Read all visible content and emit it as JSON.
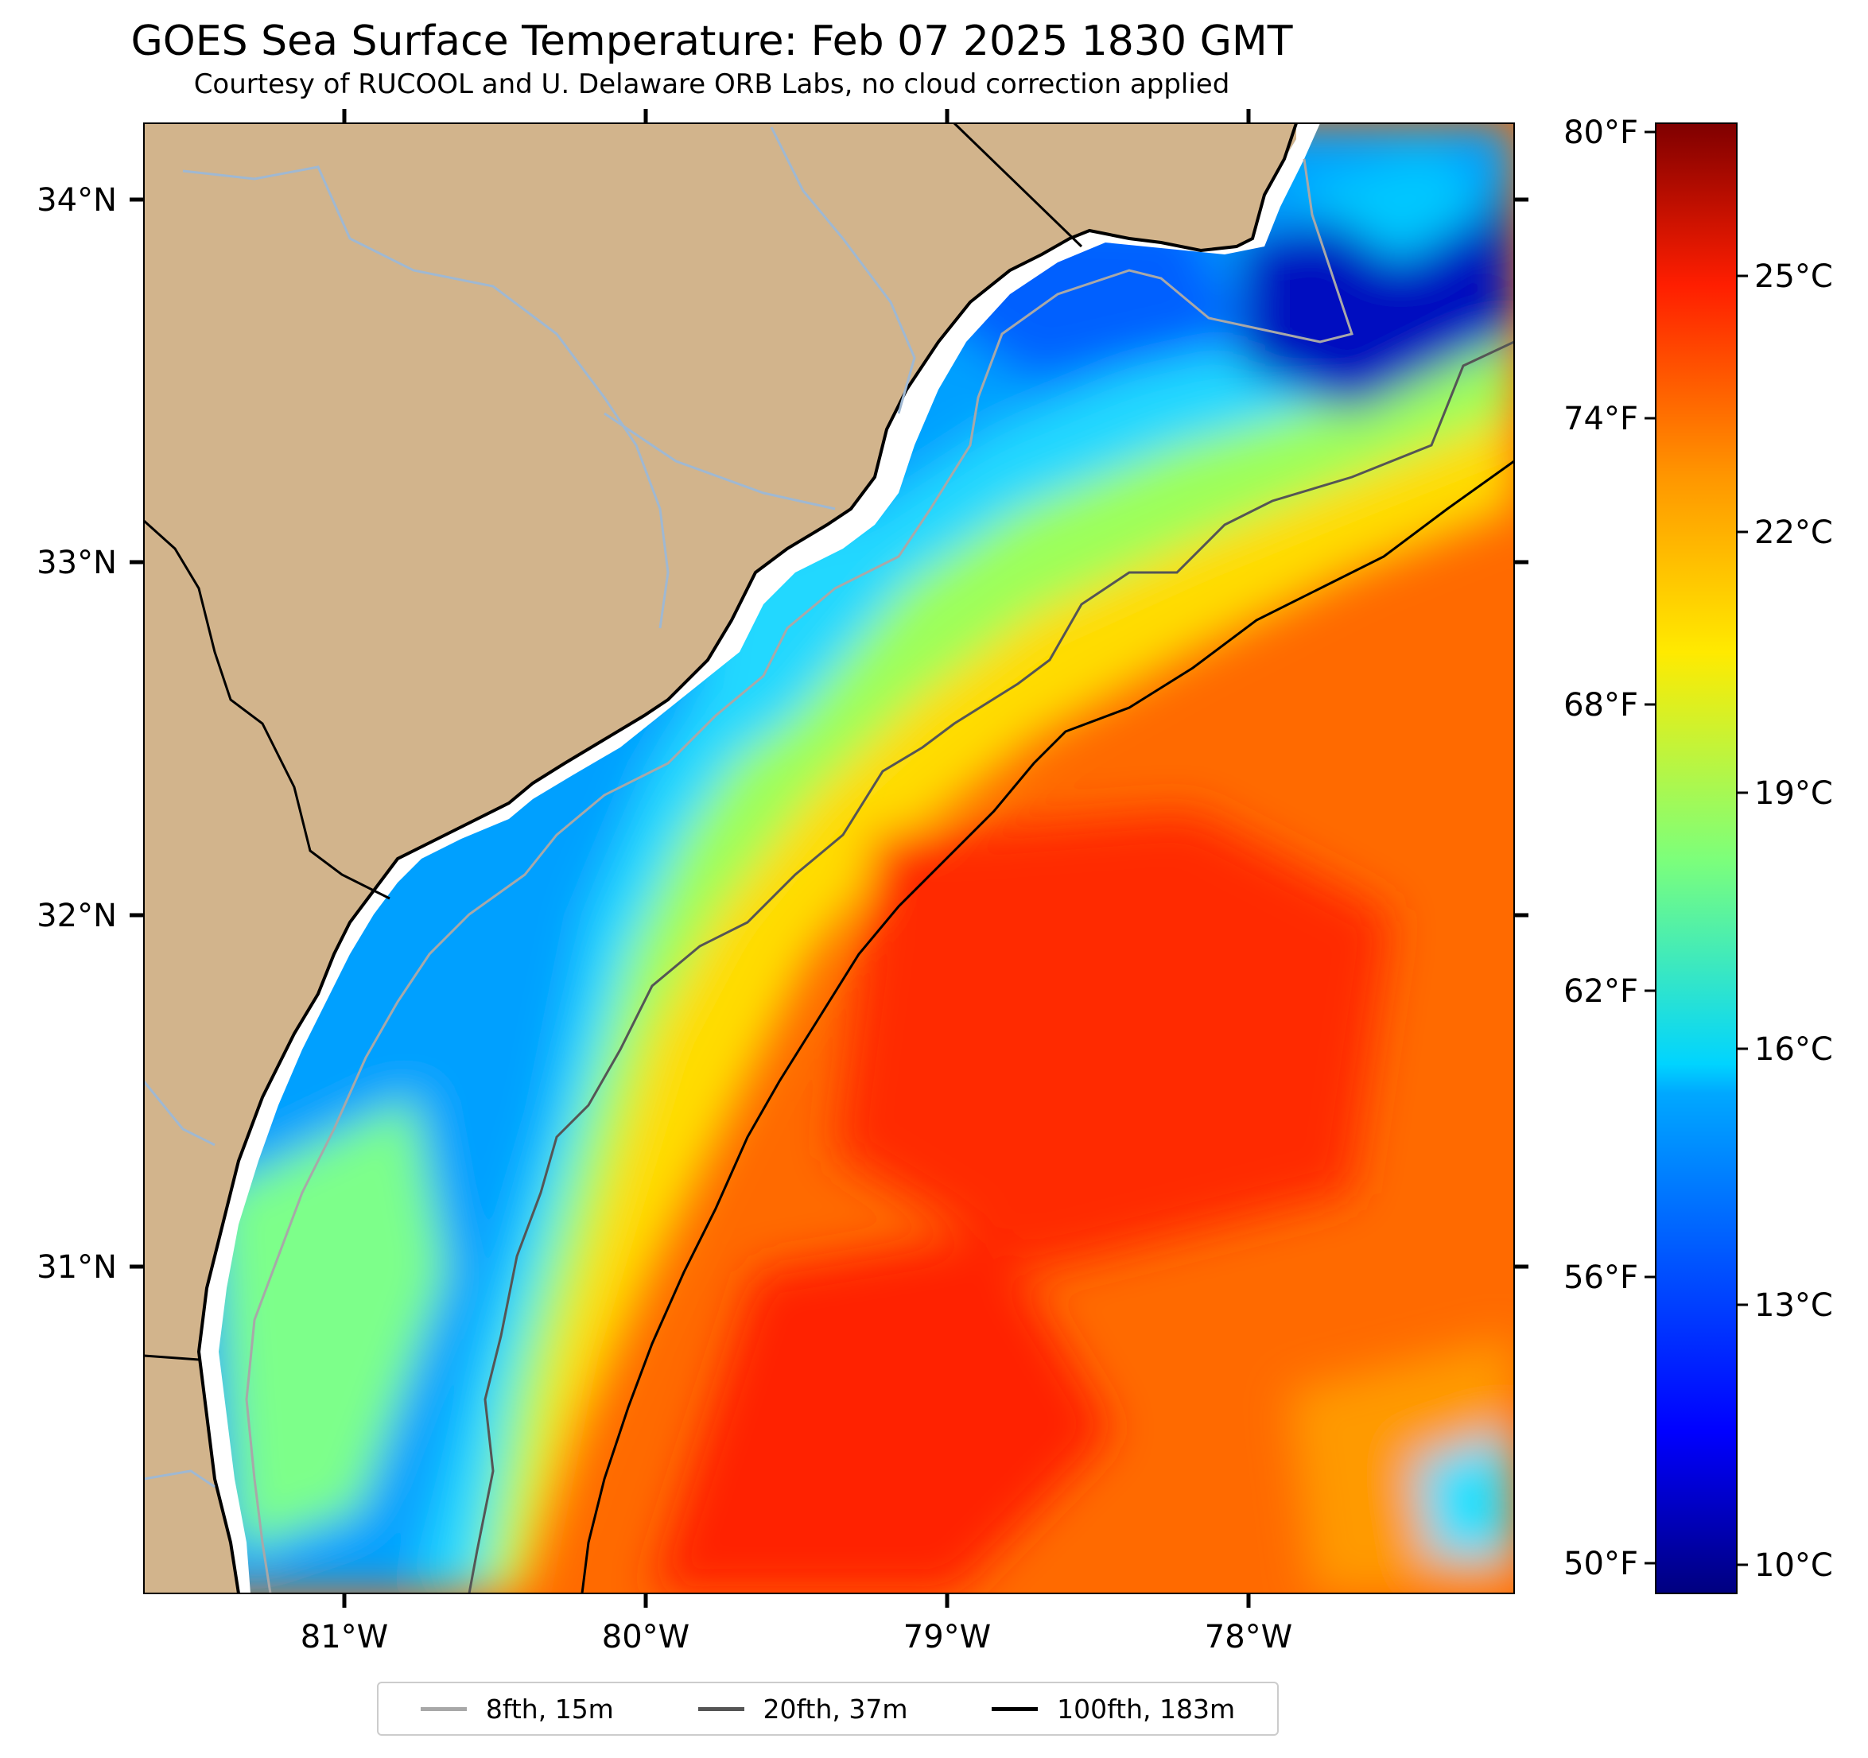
{
  "title": "GOES Sea Surface Temperature: Feb 07 2025 1830 GMT",
  "subtitle": "Courtesy of RUCOOL and U. Delaware ORB Labs, no cloud correction applied",
  "colors": {
    "land": "#d2b48c",
    "coast": "#000000",
    "rivers": "#9fb8d2",
    "isobath_8fth": "#a8a8a8",
    "isobath_20fth": "#555555",
    "isobath_100fth": "#000000"
  },
  "map": {
    "lon_range": [
      -81.67,
      -77.12
    ],
    "lat_range": [
      30.1,
      34.2
    ],
    "lon_ticks": [
      "81°W",
      "80°W",
      "79°W",
      "78°W"
    ],
    "lat_ticks": [
      "34°N",
      "33°N",
      "32°N",
      "31°N"
    ]
  },
  "colorbar": {
    "celsius_range": [
      9.5,
      27.5
    ],
    "celsius_labels": [
      "25°C",
      "22°C",
      "19°C",
      "16°C",
      "13°C",
      "10°C"
    ],
    "fahrenheit_labels": [
      "80°F",
      "74°F",
      "68°F",
      "62°F",
      "56°F",
      "50°F"
    ]
  },
  "legend": [
    {
      "label": "8fth, 15m",
      "color": "#a8a8a8"
    },
    {
      "label": "20fth, 37m",
      "color": "#555555"
    },
    {
      "label": "100fth, 183m",
      "color": "#000000"
    }
  ]
}
